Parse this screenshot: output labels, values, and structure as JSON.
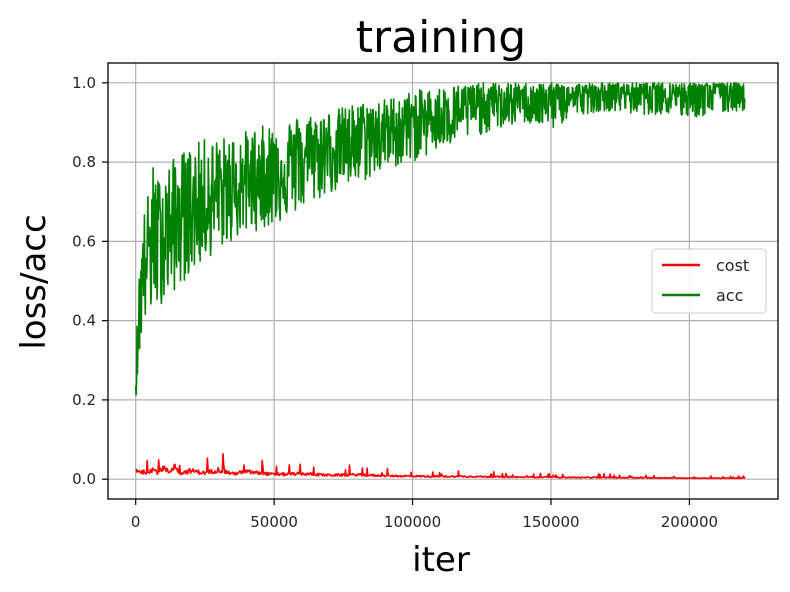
{
  "chart_data": {
    "type": "line",
    "title": "training",
    "xlabel": "iter",
    "ylabel": "loss/acc",
    "xlim": [
      -10000,
      232000
    ],
    "ylim": [
      -0.05,
      1.05
    ],
    "xticks": [
      0,
      50000,
      100000,
      150000,
      200000
    ],
    "xtick_labels": [
      "0",
      "50000",
      "100000",
      "150000",
      "200000"
    ],
    "yticks": [
      0.0,
      0.2,
      0.4,
      0.6,
      0.8,
      1.0
    ],
    "ytick_labels": [
      "0.0",
      "0.2",
      "0.4",
      "0.6",
      "0.8",
      "1.0"
    ],
    "grid": true,
    "legend_position": "center-right",
    "series": [
      {
        "name": "cost",
        "color": "#ff0000",
        "x": [
          0,
          2000,
          4000,
          6000,
          8000,
          10000,
          12000,
          14000,
          16000,
          20000,
          25000,
          30000,
          35000,
          40000,
          50000,
          60000,
          70000,
          80000,
          90000,
          100000,
          110000,
          120000,
          130000,
          140000,
          150000,
          160000,
          170000,
          180000,
          190000,
          200000,
          210000,
          220000
        ],
        "y": [
          0.028,
          0.022,
          0.02,
          0.03,
          0.02,
          0.035,
          0.02,
          0.04,
          0.018,
          0.025,
          0.018,
          0.028,
          0.016,
          0.022,
          0.014,
          0.016,
          0.012,
          0.013,
          0.01,
          0.009,
          0.008,
          0.008,
          0.007,
          0.006,
          0.006,
          0.005,
          0.005,
          0.004,
          0.004,
          0.003,
          0.003,
          0.003
        ]
      },
      {
        "name": "acc",
        "color": "#008000",
        "x": [
          0,
          1000,
          2000,
          3000,
          4000,
          6000,
          8000,
          10000,
          15000,
          20000,
          25000,
          30000,
          40000,
          50000,
          60000,
          70000,
          80000,
          90000,
          100000,
          110000,
          120000,
          130000,
          140000,
          150000,
          160000,
          170000,
          180000,
          190000,
          200000,
          210000,
          220000
        ],
        "y": [
          0.25,
          0.4,
          0.5,
          0.55,
          0.58,
          0.6,
          0.62,
          0.63,
          0.66,
          0.68,
          0.7,
          0.72,
          0.75,
          0.78,
          0.81,
          0.84,
          0.86,
          0.88,
          0.9,
          0.92,
          0.94,
          0.95,
          0.96,
          0.965,
          0.97,
          0.975,
          0.98,
          0.98,
          0.985,
          0.985,
          0.99
        ],
        "y_min": [
          0.2,
          0.28,
          0.35,
          0.38,
          0.4,
          0.42,
          0.43,
          0.45,
          0.48,
          0.52,
          0.55,
          0.58,
          0.62,
          0.64,
          0.68,
          0.72,
          0.74,
          0.78,
          0.8,
          0.83,
          0.86,
          0.88,
          0.9,
          0.88,
          0.92,
          0.93,
          0.92,
          0.92,
          0.91,
          0.92,
          0.93
        ],
        "y_max": [
          0.3,
          0.5,
          0.6,
          0.68,
          0.7,
          0.8,
          0.76,
          0.78,
          0.82,
          0.84,
          0.86,
          0.86,
          0.88,
          0.9,
          0.92,
          0.93,
          0.95,
          0.96,
          0.98,
          0.99,
          1.0,
          1.0,
          1.0,
          1.0,
          1.0,
          1.0,
          1.0,
          1.0,
          1.0,
          1.0,
          1.0
        ]
      }
    ]
  }
}
